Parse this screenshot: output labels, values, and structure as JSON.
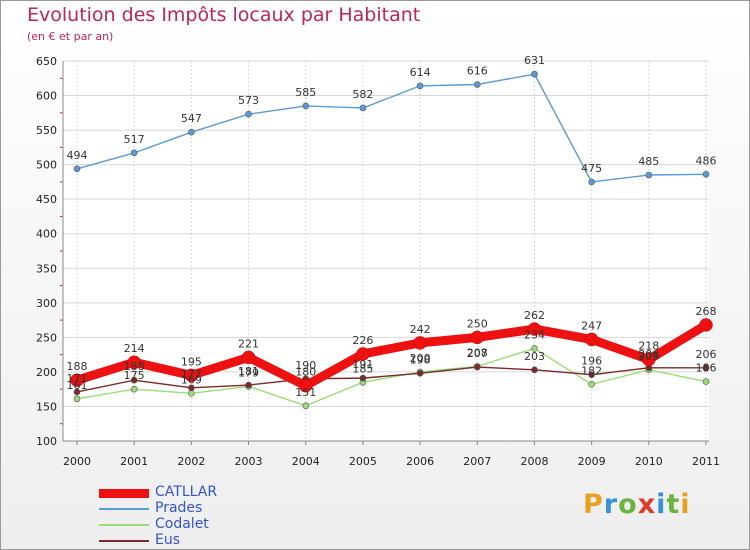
{
  "header": {
    "title": "Evolution des Impôts locaux par Habitant",
    "subtitle": "(en € et par an)"
  },
  "logo": {
    "text": "Proxiti",
    "letter_colors": [
      "#e8a020",
      "#3a8fd8",
      "#6db33f",
      "#e03a2a",
      "#3a8fd8",
      "#6db33f",
      "#e8a020"
    ]
  },
  "chart_data": {
    "type": "line",
    "title": "Evolution des Impôts locaux par Habitant",
    "subtitle": "(en € et par an)",
    "xlabel": "",
    "ylabel": "",
    "ylim": [
      100,
      650
    ],
    "yticks": [
      100,
      150,
      200,
      250,
      300,
      350,
      400,
      450,
      500,
      550,
      600,
      650
    ],
    "grid": true,
    "legend_position": "bottom-left",
    "categories": [
      "2000",
      "2001",
      "2002",
      "2003",
      "2004",
      "2005",
      "2006",
      "2007",
      "2008",
      "2009",
      "2010",
      "2011"
    ],
    "series": [
      {
        "name": "CATLLAR",
        "color": "#ee1111",
        "emphasis": "thick",
        "values": [
          188,
          214,
          195,
          221,
          180,
          226,
          242,
          250,
          262,
          247,
          218,
          268
        ],
        "labels": [
          "188",
          "214",
          "195",
          "221",
          "180",
          "226",
          "242",
          "250",
          "262",
          "247",
          "218",
          "268"
        ]
      },
      {
        "name": "Prades",
        "color": "#5b9bd5",
        "emphasis": "thin",
        "values": [
          494,
          517,
          547,
          573,
          585,
          582,
          614,
          616,
          631,
          475,
          485,
          486
        ],
        "labels": [
          "494",
          "517",
          "547",
          "573",
          "585",
          "582",
          "614",
          "616",
          "631",
          "475",
          "485",
          "486"
        ]
      },
      {
        "name": "Codalet",
        "color": "#99dd77",
        "emphasis": "thin",
        "values": [
          161,
          175,
          169,
          179,
          151,
          185,
          200,
          208,
          234,
          182,
          203,
          186
        ],
        "labels": [
          "161",
          "175",
          "169",
          "179",
          "151",
          "185",
          "200",
          "208",
          "234",
          "182",
          "203",
          "186"
        ]
      },
      {
        "name": "Eus",
        "color": "#7a2a2a",
        "emphasis": "thin",
        "values": [
          171,
          188,
          177,
          181,
          190,
          191,
          198,
          207,
          203,
          196,
          206,
          206
        ],
        "labels": [
          "171",
          "188",
          "177",
          "181",
          "190",
          "191",
          "198",
          "207",
          "203",
          "196",
          "206",
          "206"
        ]
      }
    ]
  }
}
